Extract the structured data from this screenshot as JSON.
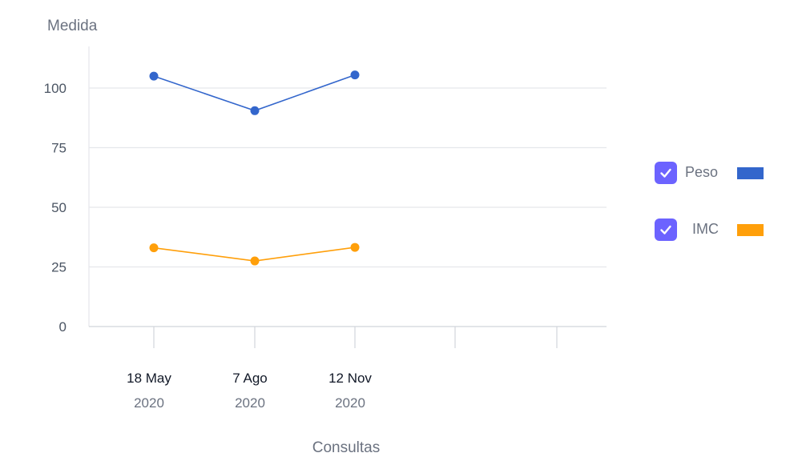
{
  "chart_data": {
    "type": "line",
    "ylabel": "Medida",
    "xlabel": "Consultas",
    "ylim": [
      0,
      115
    ],
    "yticks": [
      "0",
      "25",
      "50",
      "75",
      "100"
    ],
    "x_categories": [
      {
        "main": "18 May",
        "sub": "2020"
      },
      {
        "main": "7 Ago",
        "sub": "2020"
      },
      {
        "main": "12 Nov",
        "sub": "2020"
      }
    ],
    "x_slots": 5,
    "grid": "horizontal",
    "legend_position": "right",
    "series": [
      {
        "name": "Peso",
        "color": "#3366cc",
        "values": [
          105,
          90.5,
          105.5
        ],
        "checked": true
      },
      {
        "name": "IMC",
        "color": "#ff9f0a",
        "values": [
          33,
          27.5,
          33.2
        ],
        "checked": true
      }
    ]
  },
  "legend_check_color": "#6c63ff",
  "legend_check_icon": "checkmark-icon"
}
